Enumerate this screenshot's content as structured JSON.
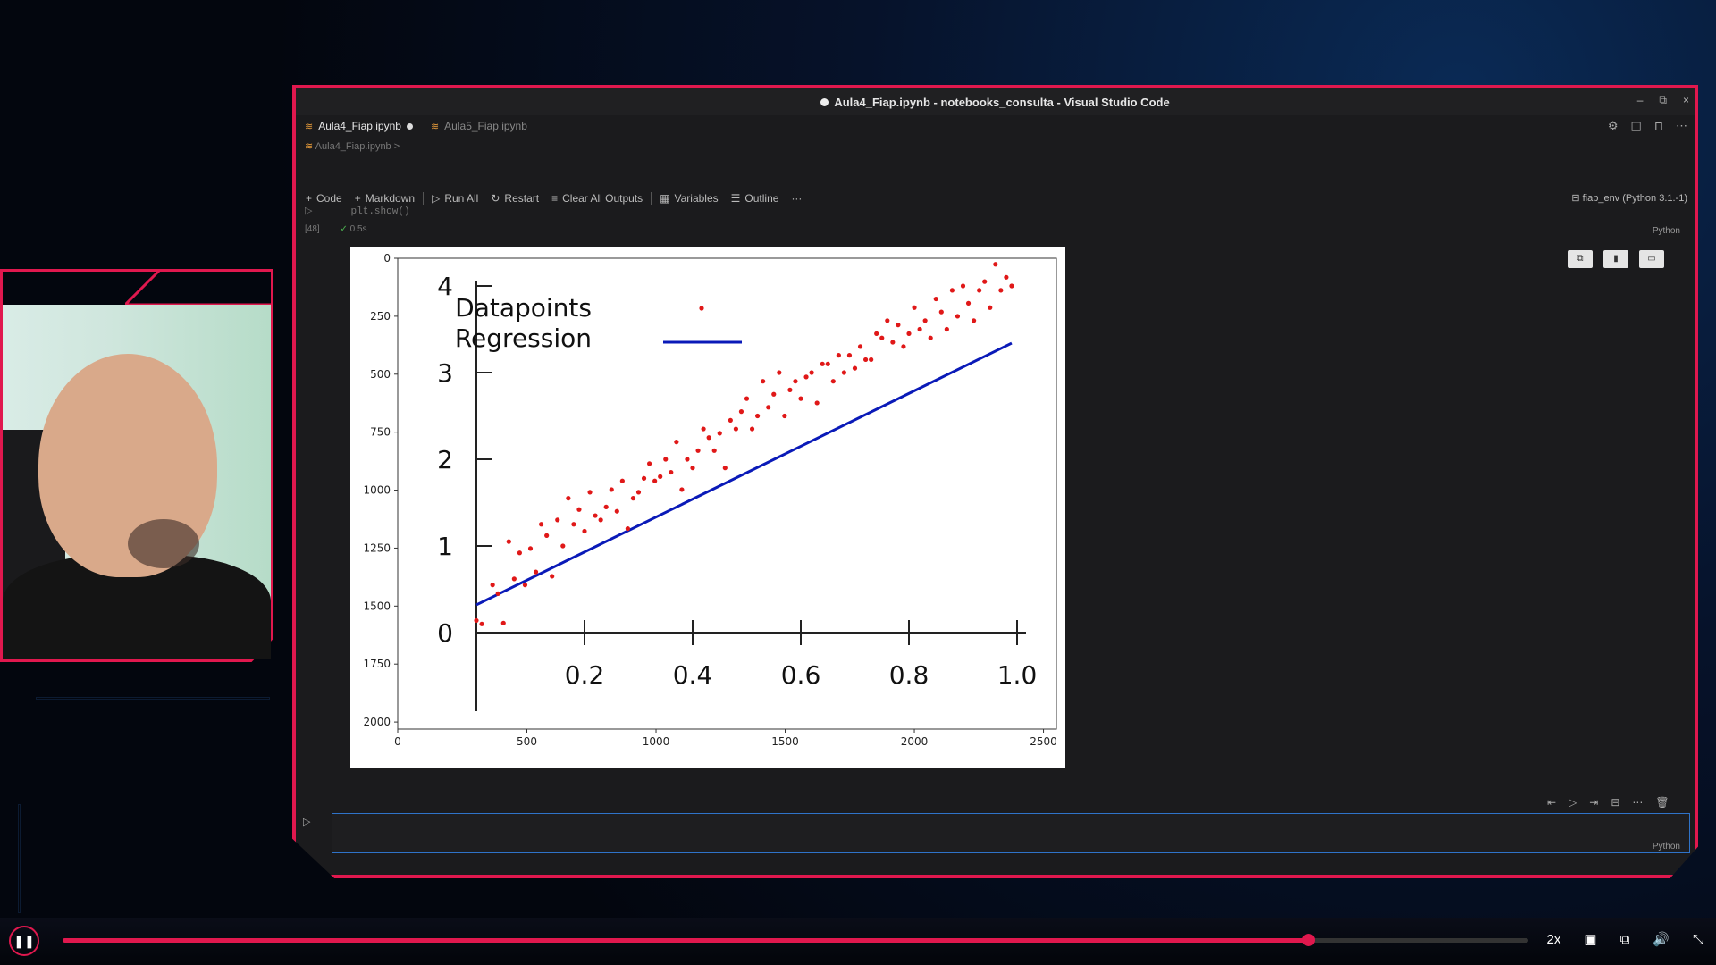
{
  "window": {
    "title": "Aula4_Fiap.ipynb - notebooks_consulta - Visual Studio Code",
    "controls": [
      "–",
      "⧉",
      "×"
    ]
  },
  "tabs": [
    {
      "label": "Aula4_Fiap.ipynb",
      "active": true,
      "modified": true
    },
    {
      "label": "Aula5_Fiap.ipynb",
      "active": false,
      "modified": false
    }
  ],
  "breadcrumb": "Aula4_Fiap.ipynb >",
  "toolbar": {
    "code": "Code",
    "markdown": "Markdown",
    "run_all": "Run All",
    "restart": "Restart",
    "clear_outputs": "Clear All Outputs",
    "variables": "Variables",
    "outline": "Outline",
    "more": "···",
    "kernel": "fiap_env (Python 3.1.-1)"
  },
  "cell": {
    "code_fragment": "plt.show()",
    "exec_count": "[48]",
    "exec_time": "0.5s",
    "language": "Python"
  },
  "new_cell": {
    "language": "Python"
  },
  "player": {
    "speed": "2x",
    "progress": 0.85
  },
  "chart_data": [
    {
      "type": "image",
      "description_axes": "outer imshow axes",
      "x_ticks": [
        "0",
        "500",
        "1000",
        "1500",
        "2000",
        "2500"
      ],
      "y_ticks": [
        "0",
        "250",
        "500",
        "750",
        "1000",
        "1250",
        "1500",
        "1750",
        "2000"
      ]
    },
    {
      "type": "scatter",
      "legend": [
        "Datapoints",
        "Regression"
      ],
      "x_ticks": [
        "0.2",
        "0.4",
        "0.6",
        "0.8",
        "1.0"
      ],
      "y_ticks": [
        "0",
        "1",
        "2",
        "3",
        "4"
      ],
      "xlim": [
        0,
        1.0
      ],
      "ylim": [
        0,
        4
      ],
      "regression": {
        "slope": 3.05,
        "intercept": 0.32
      },
      "series": [
        {
          "name": "Datapoints",
          "x": [
            0.0,
            0.01,
            0.03,
            0.04,
            0.05,
            0.06,
            0.07,
            0.08,
            0.09,
            0.1,
            0.11,
            0.12,
            0.13,
            0.14,
            0.15,
            0.16,
            0.17,
            0.18,
            0.19,
            0.2,
            0.21,
            0.22,
            0.23,
            0.24,
            0.25,
            0.26,
            0.27,
            0.28,
            0.29,
            0.3,
            0.31,
            0.32,
            0.33,
            0.34,
            0.35,
            0.36,
            0.37,
            0.38,
            0.39,
            0.4,
            0.41,
            0.42,
            0.43,
            0.44,
            0.45,
            0.46,
            0.47,
            0.48,
            0.49,
            0.5,
            0.51,
            0.52,
            0.53,
            0.54,
            0.55,
            0.56,
            0.57,
            0.58,
            0.59,
            0.6,
            0.61,
            0.62,
            0.63,
            0.64,
            0.65,
            0.66,
            0.67,
            0.68,
            0.69,
            0.7,
            0.71,
            0.72,
            0.73,
            0.74,
            0.75,
            0.76,
            0.77,
            0.78,
            0.79,
            0.8,
            0.81,
            0.82,
            0.83,
            0.84,
            0.85,
            0.86,
            0.87,
            0.88,
            0.89,
            0.9,
            0.91,
            0.92,
            0.93,
            0.94,
            0.95,
            0.96,
            0.97,
            0.98,
            0.99
          ],
          "y": [
            0.14,
            0.1,
            0.55,
            0.45,
            0.11,
            1.05,
            0.62,
            0.92,
            0.55,
            0.97,
            0.7,
            1.25,
            1.12,
            0.65,
            1.3,
            1.0,
            1.55,
            1.25,
            1.42,
            1.17,
            1.62,
            1.35,
            1.3,
            1.45,
            1.65,
            1.4,
            1.75,
            1.2,
            1.55,
            1.62,
            1.78,
            1.95,
            1.75,
            1.8,
            2.0,
            1.85,
            2.2,
            1.65,
            2.0,
            1.9,
            2.1,
            2.35,
            2.25,
            2.1,
            2.3,
            1.9,
            2.45,
            2.35,
            2.55,
            2.7,
            2.35,
            2.5,
            2.9,
            2.6,
            2.75,
            3.0,
            2.5,
            2.8,
            2.9,
            2.7,
            2.95,
            3.0,
            2.65,
            3.1,
            3.1,
            2.9,
            3.2,
            3.0,
            3.2,
            3.05,
            3.3,
            3.15,
            3.15,
            3.45,
            3.4,
            3.6,
            3.35,
            3.55,
            3.3,
            3.45,
            3.75,
            3.5,
            3.6,
            3.4,
            3.85,
            3.7,
            3.5,
            3.95,
            3.65,
            4.0,
            3.8,
            3.6,
            3.95,
            4.05,
            3.75,
            4.25,
            3.95,
            4.1,
            4.0
          ]
        }
      ]
    }
  ]
}
